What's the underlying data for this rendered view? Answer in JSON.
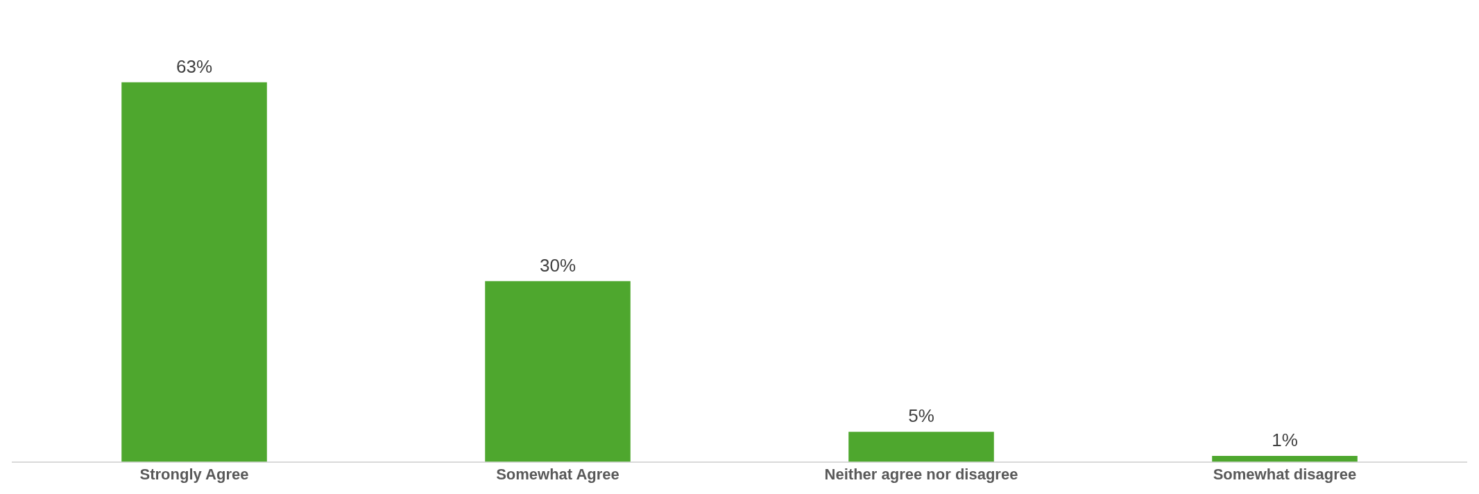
{
  "chart_data": {
    "type": "bar",
    "categories": [
      "Strongly Agree",
      "Somewhat Agree",
      "Neither agree nor disagree",
      "Somewhat disagree"
    ],
    "values": [
      63,
      30,
      5,
      1
    ],
    "value_labels": [
      "63%",
      "30%",
      "5%",
      "1%"
    ],
    "color": "#4ea72e",
    "grid": false,
    "legend": false
  }
}
